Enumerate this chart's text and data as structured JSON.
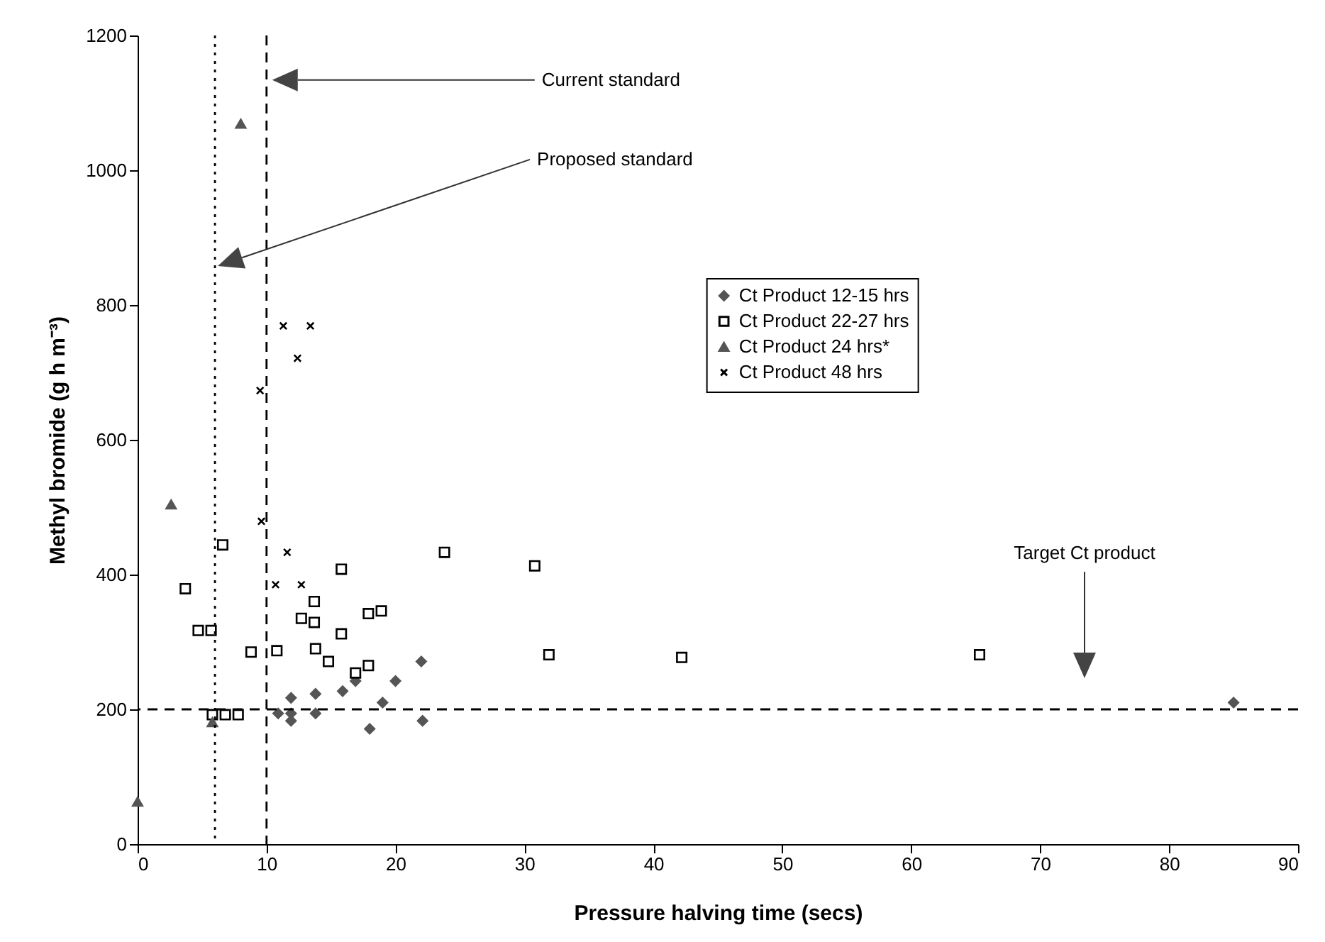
{
  "chart_data": {
    "type": "scatter",
    "xlabel": "Pressure halving time (secs)",
    "ylabel": "Methyl bromide (g h m⁻³)",
    "xlim": [
      0,
      90
    ],
    "xticks": [
      0,
      10,
      20,
      30,
      40,
      50,
      60,
      70,
      80,
      90
    ],
    "ylim": [
      0,
      1200
    ],
    "yticks": [
      0,
      200,
      400,
      600,
      800,
      1000,
      1200
    ],
    "grid": false,
    "legend": "top right",
    "series": [
      {
        "name": "Ct Product 12-15 hrs",
        "color": "#555555",
        "marker": "diamond",
        "x": [
          10.9,
          11.9,
          11.9,
          11.9,
          13.8,
          13.8,
          15.9,
          16.9,
          18.0,
          19.0,
          20.0,
          22.0,
          22.1,
          85.0
        ],
        "values": [
          194,
          217,
          194,
          183,
          223,
          194,
          227,
          242,
          171,
          210,
          242,
          271,
          183,
          210
        ]
      },
      {
        "name": "Ct Product 22-27 hrs",
        "color": "#000000",
        "marker": "square",
        "x": [
          3.7,
          6.6,
          4.7,
          5.7,
          8.8,
          10.8,
          5.8,
          6.8,
          7.8,
          13.7,
          12.7,
          13.7,
          15.8,
          15.8,
          13.8,
          14.8,
          16.9,
          17.9,
          17.9,
          18.9,
          23.8,
          30.8,
          31.9,
          42.2,
          65.3
        ],
        "values": [
          379,
          444,
          317,
          317,
          285,
          287,
          192,
          192,
          192,
          360,
          335,
          329,
          408,
          312,
          290,
          271,
          254,
          265,
          342,
          346,
          433,
          413,
          281,
          277,
          281
        ]
      },
      {
        "name": "Ct Product 24 hrs*",
        "color": "#555555",
        "marker": "triangle",
        "x": [
          0,
          2.6,
          5.8,
          8.0
        ],
        "values": [
          63,
          504,
          181,
          1069
        ]
      },
      {
        "name": "Ct Product 48 hrs",
        "color": "#000000",
        "marker": "cross",
        "x": [
          9.6,
          11.6,
          10.7,
          12.7,
          11.3,
          13.4,
          12.4,
          9.5
        ],
        "values": [
          479,
          433,
          385,
          385,
          769,
          769,
          721,
          673
        ]
      }
    ],
    "ref_lines": [
      {
        "axis": "x",
        "value": 10,
        "line_style": "dashed"
      },
      {
        "axis": "x",
        "value": 6,
        "line_style": "dotted"
      },
      {
        "axis": "y",
        "value": 200,
        "line_style": "dashed"
      }
    ],
    "annotations": [
      "Current standard",
      "Proposed standard",
      "Target Ct product"
    ]
  }
}
